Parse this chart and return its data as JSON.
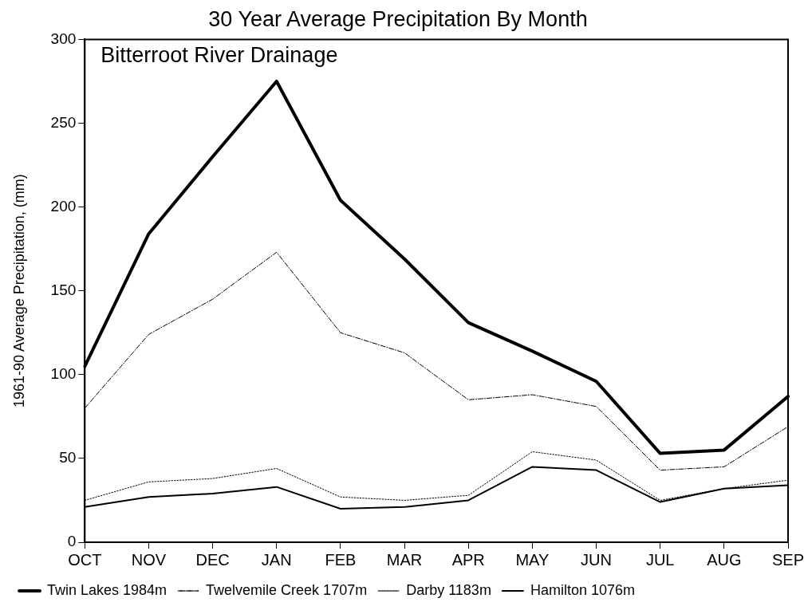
{
  "chart_data": {
    "type": "line",
    "title": "30 Year Average Precipitation By Month",
    "ylabel": "1961-90 Average Precipitation, (mm)",
    "annotations": [
      "Bitterroot River Drainage"
    ],
    "categories": [
      "OCT",
      "NOV",
      "DEC",
      "JAN",
      "FEB",
      "MAR",
      "APR",
      "MAY",
      "JUN",
      "JUL",
      "AUG",
      "SEP"
    ],
    "series": [
      {
        "name": "Twin Lakes 1984m",
        "color": "#000000",
        "line_style": "solid",
        "values": [
          105,
          184,
          230,
          275,
          204,
          169,
          131,
          114,
          96,
          53,
          55,
          87
        ]
      },
      {
        "name": "Twelvemile Creek 1707m",
        "color": "#000000",
        "line_style": "dashed",
        "values": [
          80,
          124,
          145,
          173,
          125,
          113,
          85,
          88,
          81,
          43,
          45,
          69
        ]
      },
      {
        "name": "Darby 1183m",
        "color": "#000000",
        "line_style": "dotted",
        "values": [
          25,
          36,
          38,
          44,
          27,
          25,
          28,
          54,
          49,
          25,
          32,
          37
        ]
      },
      {
        "name": "Hamilton 1076m",
        "color": "#000000",
        "line_style": "solid",
        "values": [
          21,
          27,
          29,
          33,
          20,
          21,
          25,
          45,
          43,
          24,
          32,
          34
        ]
      }
    ],
    "ylim": [
      0,
      300
    ],
    "yticks": [
      0,
      50,
      100,
      150,
      200,
      250,
      300
    ],
    "grid": false,
    "legend": "bottom",
    "marker": "none"
  }
}
